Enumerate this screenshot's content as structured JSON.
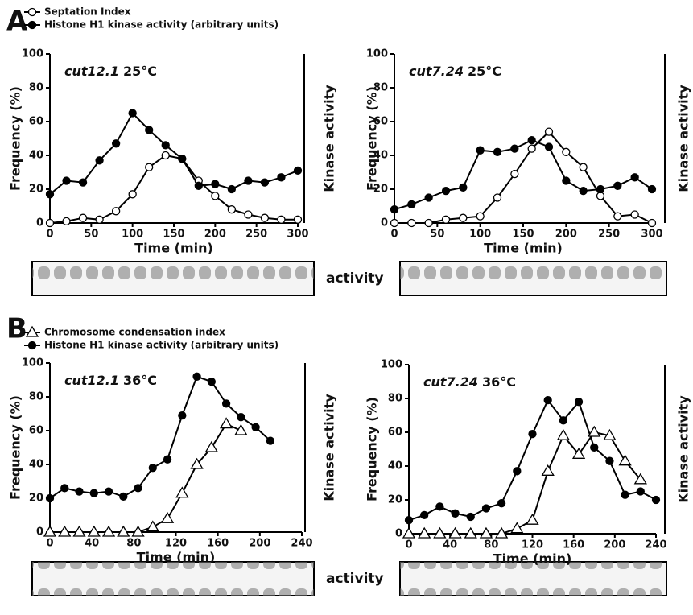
{
  "panels": [
    {
      "label": "A",
      "blot_label": "activity"
    },
    {
      "label": "B",
      "blot_label": "activity"
    }
  ],
  "chart_data": [
    {
      "type": "line",
      "strain": "cut12.1",
      "temperature": "25°C",
      "x_label": "Time (min)",
      "y_label": "Frequency (%)",
      "y2_label": "Kinase activity",
      "x": [
        0,
        20,
        40,
        60,
        80,
        100,
        120,
        140,
        160,
        180,
        200,
        220,
        240,
        260,
        280,
        300
      ],
      "xlim": [
        0,
        300
      ],
      "xticks": [
        0,
        50,
        100,
        150,
        200,
        250,
        300
      ],
      "ylim": [
        0,
        100
      ],
      "yticks": [
        0,
        20,
        40,
        60,
        80,
        100
      ],
      "series": [
        {
          "name": "Septation Index",
          "marker": "circle-open",
          "color": "#000000",
          "values": [
            0,
            1,
            3,
            2,
            7,
            17,
            33,
            40,
            38,
            25,
            16,
            8,
            5,
            3,
            2,
            2
          ]
        },
        {
          "name": "Histone H1 kinase activity (arbitrary units)",
          "marker": "circle-filled",
          "color": "#000000",
          "values": [
            17,
            25,
            24,
            37,
            47,
            65,
            55,
            46,
            38,
            22,
            23,
            20,
            25,
            24,
            27,
            31
          ]
        }
      ]
    },
    {
      "type": "line",
      "strain": "cut7.24",
      "temperature": "25°C",
      "x_label": "Time (min)",
      "y_label": "Frequency (%)",
      "y2_label": "Kinase activity",
      "x": [
        0,
        20,
        40,
        60,
        80,
        100,
        120,
        140,
        160,
        180,
        200,
        220,
        240,
        260,
        280,
        300
      ],
      "xlim": [
        0,
        300
      ],
      "xticks": [
        0,
        50,
        100,
        150,
        200,
        250,
        300
      ],
      "ylim": [
        0,
        100
      ],
      "yticks": [
        0,
        20,
        40,
        60,
        80,
        100
      ],
      "series": [
        {
          "marker": "circle-open",
          "color": "#000000",
          "values": [
            0,
            0,
            0,
            2,
            3,
            4,
            15,
            29,
            44,
            54,
            42,
            33,
            16,
            4,
            5,
            0
          ]
        },
        {
          "marker": "circle-filled",
          "color": "#000000",
          "values": [
            8,
            11,
            15,
            19,
            21,
            43,
            42,
            44,
            49,
            45,
            25,
            19,
            20,
            22,
            27,
            20
          ]
        }
      ]
    },
    {
      "type": "line",
      "strain": "cut12.1",
      "temperature": "36°C",
      "x_label": "Time (min)",
      "y_label": "Frequency (%)",
      "y2_label": "Kinase activity",
      "x": [
        0,
        14,
        28,
        42,
        56,
        70,
        84,
        98,
        112,
        126,
        140,
        154,
        168,
        182,
        196,
        210
      ],
      "xlim": [
        0,
        240
      ],
      "xticks": [
        0,
        40,
        80,
        120,
        160,
        200,
        240
      ],
      "ylim": [
        0,
        100
      ],
      "yticks": [
        0,
        20,
        40,
        60,
        80,
        100
      ],
      "series": [
        {
          "name": "Chromosome condensation index",
          "marker": "triangle-open",
          "color": "#000000",
          "values": [
            0,
            0,
            0,
            0,
            0,
            0,
            0,
            3,
            8,
            23,
            40,
            50,
            64,
            60,
            null,
            null
          ]
        },
        {
          "name": "Histone H1 kinase activity (arbitrary units)",
          "marker": "circle-filled",
          "color": "#000000",
          "values": [
            20,
            26,
            24,
            23,
            24,
            21,
            26,
            38,
            43,
            69,
            92,
            89,
            76,
            68,
            62,
            54
          ]
        }
      ]
    },
    {
      "type": "line",
      "strain": "cut7.24",
      "temperature": "36°C",
      "x_label": "Time (min)",
      "y_label": "Frequency (%)",
      "y2_label": "Kinase activity",
      "x": [
        0,
        15,
        30,
        45,
        60,
        75,
        90,
        105,
        120,
        135,
        150,
        165,
        180,
        195,
        210,
        225,
        240
      ],
      "xlim": [
        0,
        240
      ],
      "xticks": [
        0,
        40,
        80,
        120,
        160,
        200,
        240
      ],
      "ylim": [
        0,
        100
      ],
      "yticks": [
        0,
        20,
        40,
        60,
        80,
        100
      ],
      "series": [
        {
          "marker": "triangle-open",
          "color": "#000000",
          "values": [
            0,
            0,
            0,
            0,
            0,
            0,
            0,
            3,
            8,
            37,
            58,
            47,
            60,
            58,
            43,
            32,
            null
          ]
        },
        {
          "marker": "circle-filled",
          "color": "#000000",
          "values": [
            8,
            11,
            16,
            12,
            10,
            15,
            18,
            37,
            59,
            79,
            67,
            78,
            51,
            43,
            23,
            25,
            20
          ]
        }
      ]
    }
  ]
}
